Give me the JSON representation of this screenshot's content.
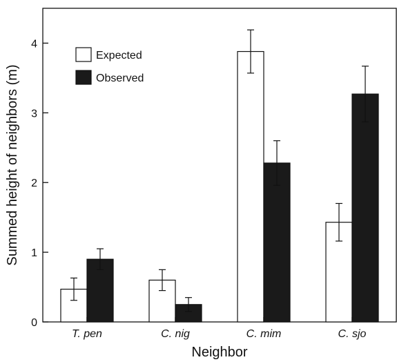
{
  "chart_data": {
    "type": "bar",
    "categories": [
      "T. pen",
      "C. nig",
      "C. mim",
      "C. sjo"
    ],
    "series": [
      {
        "name": "Expected",
        "color": "#ffffff",
        "values": [
          0.47,
          0.6,
          3.88,
          1.43
        ],
        "errors": [
          0.16,
          0.15,
          0.31,
          0.27
        ]
      },
      {
        "name": "Observed",
        "color": "#1a1a1a",
        "values": [
          0.9,
          0.25,
          2.28,
          3.27
        ],
        "errors": [
          0.15,
          0.1,
          0.32,
          0.4
        ]
      }
    ],
    "xlabel": "Neighbor",
    "ylabel": "Summed height of neighbors (m)",
    "ylim": [
      0,
      4.5
    ],
    "yticks": [
      0,
      1,
      2,
      3,
      4
    ],
    "grid": false,
    "legend_position": "top-left"
  }
}
